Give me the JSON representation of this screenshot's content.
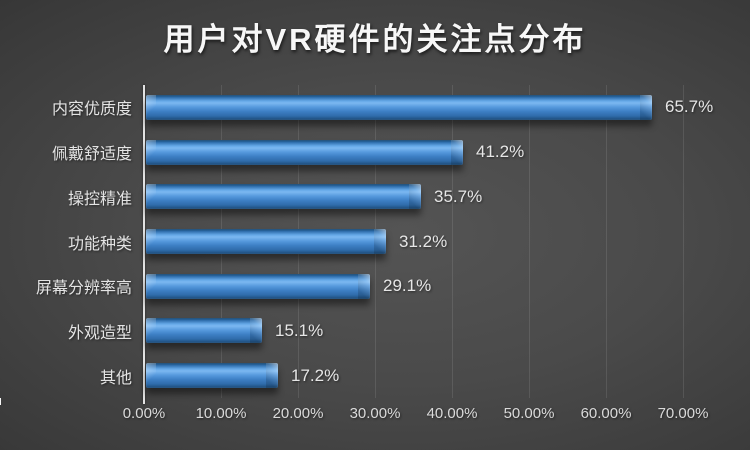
{
  "title": "用户对VR硬件的关注点分布",
  "colors": {
    "bar_blue": "#3b7dc4",
    "background_center": "#4f4f4f",
    "background_edge": "#242424",
    "text_light": "#e6e6e6",
    "axis_line": "#e3e3e3"
  },
  "chart_data": {
    "type": "bar",
    "orientation": "horizontal",
    "title": "用户对VR硬件的关注点分布",
    "categories": [
      "内容优质度",
      "佩戴舒适度",
      "操控精准",
      "功能种类",
      "屏幕分辨率高",
      "外观造型",
      "其他"
    ],
    "values": [
      65.7,
      41.2,
      35.7,
      31.2,
      29.1,
      15.1,
      17.2
    ],
    "data_labels": [
      "65.7%",
      "41.2%",
      "35.7%",
      "31.2%",
      "29.1%",
      "15.1%",
      "17.2%"
    ],
    "xlabel": "",
    "ylabel": "",
    "xlim": [
      0,
      70
    ],
    "x_tick_labels": [
      "0.00%",
      "10.00%",
      "20.00%",
      "30.00%",
      "40.00%",
      "50.00%",
      "60.00%",
      "70.00%"
    ],
    "grid": true,
    "legend": false,
    "bar_color": "#3b7dc4"
  }
}
